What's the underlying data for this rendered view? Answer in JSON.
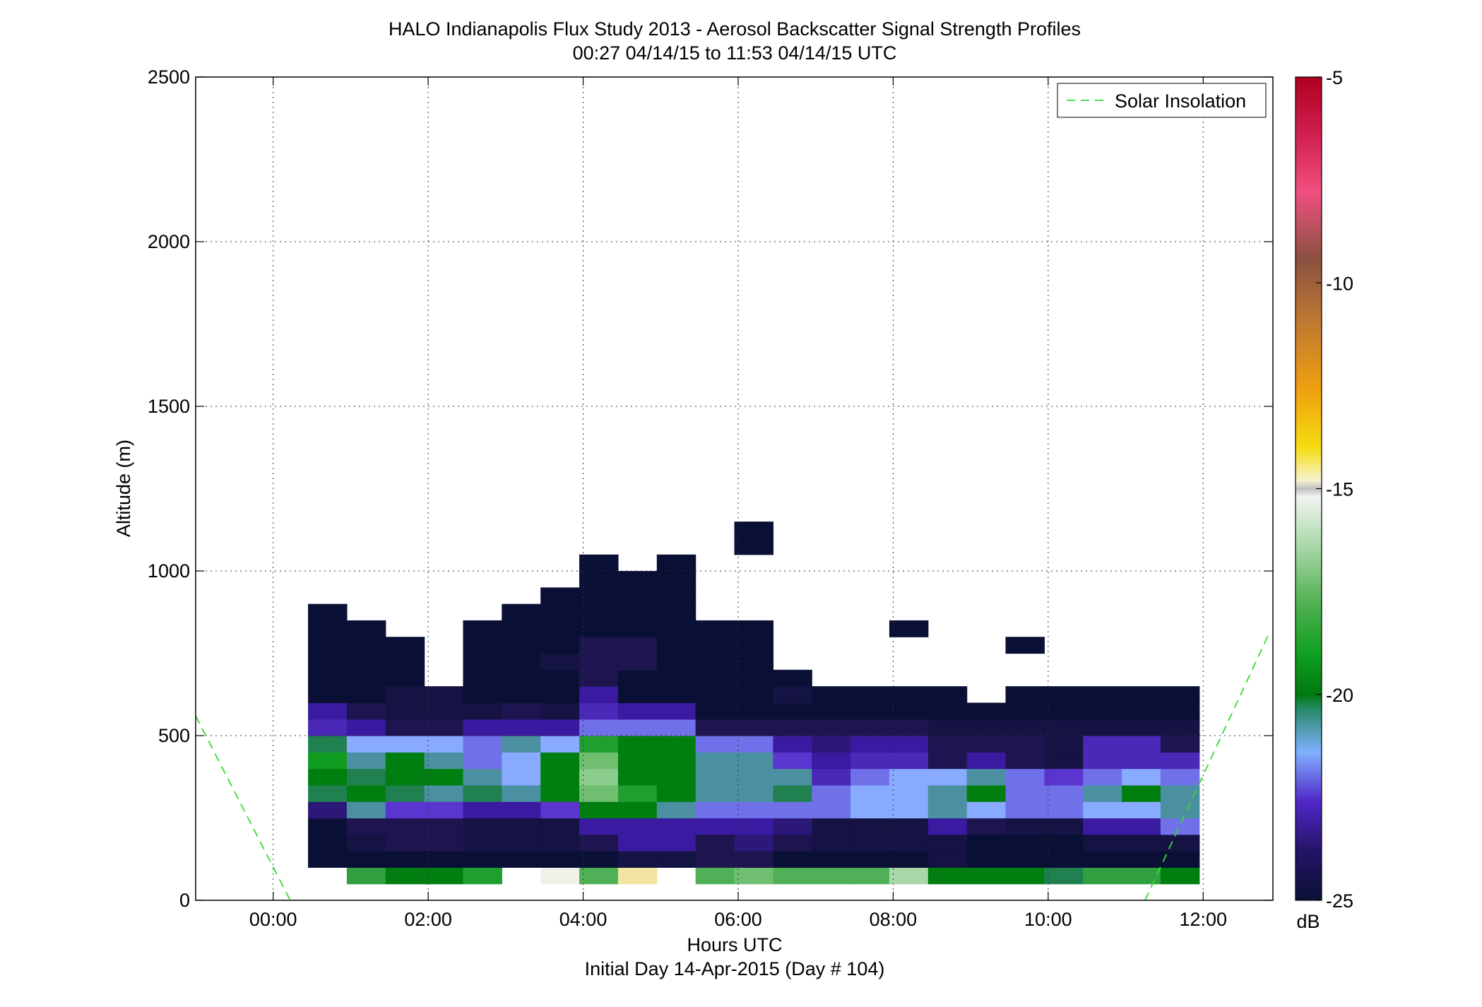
{
  "chart_data": {
    "type": "heatmap",
    "title_line1": "HALO Indianapolis Flux Study 2013 - Aerosol Backscatter Signal Strength Profiles",
    "title_line2": "00:27 04/14/15 to 11:53 04/14/15  UTC",
    "xlabel": "Hours UTC",
    "xlabel_sub": "Initial Day 14-Apr-2015 (Day # 104)",
    "ylabel": "Altitude (m)",
    "xlim": [
      -1.0,
      12.9
    ],
    "ylim": [
      0,
      2500
    ],
    "x_ticks": [
      0,
      2,
      4,
      6,
      8,
      10,
      12
    ],
    "x_tick_labels": [
      "00:00",
      "02:00",
      "04:00",
      "06:00",
      "08:00",
      "10:00",
      "12:00"
    ],
    "y_ticks": [
      0,
      500,
      1000,
      1500,
      2000,
      2500
    ],
    "y_tick_labels": [
      "0",
      "500",
      "1000",
      "1500",
      "2000",
      "2500"
    ],
    "grid": true,
    "legend": {
      "placement": "top-right",
      "entries": [
        {
          "label": "Solar Insolation",
          "color": "#33dd33",
          "style": "dashed"
        }
      ]
    },
    "colorbar": {
      "unit": "dB",
      "range": [
        -25,
        -5
      ],
      "tick_values": [
        -5,
        -10,
        -15,
        -20,
        -25
      ],
      "tick_labels": [
        "-5",
        "-10",
        "-15",
        "-20",
        "-25"
      ]
    },
    "x_start": 0.45,
    "x_step": 0.5,
    "y_start": 50,
    "y_step": 50,
    "columns": [
      {
        "values": [
          null,
          -25,
          -25,
          -25,
          -23.5,
          -20,
          -19.5,
          -19,
          -20,
          -22.5,
          -23,
          -25,
          -25,
          -25,
          -25,
          -25,
          -25
        ]
      },
      {
        "values": [
          -18,
          -25,
          -24.5,
          -24,
          -20.5,
          -19.5,
          -20,
          -20.5,
          -21,
          -23,
          -24,
          -25,
          -25,
          -25,
          -25,
          -25
        ]
      },
      {
        "values": [
          -19.5,
          -25,
          -24,
          -24,
          -22,
          -20,
          -19.5,
          -19.5,
          -21,
          -24,
          -24.5,
          -24.5,
          -25,
          -25,
          -25
        ]
      },
      {
        "values": [
          -19.5,
          -25,
          -24,
          -24,
          -22,
          -20.5,
          -19.5,
          -20.5,
          -21,
          -24,
          -24.5,
          -24.5
        ]
      },
      {
        "values": [
          -18.5,
          -25,
          -24.5,
          -24.5,
          -23,
          -20,
          -20.5,
          -21.5,
          -21.5,
          -23,
          -24.5,
          -25,
          -25,
          -25,
          -25,
          -25
        ]
      },
      {
        "values": [
          null,
          -25,
          -24.5,
          -24.5,
          -23,
          -20.5,
          -21,
          -21,
          -20.5,
          -23,
          -24,
          -25,
          -25,
          -25,
          -25,
          -25,
          -25
        ]
      },
      {
        "values": [
          -15,
          -25,
          -24.5,
          -24.5,
          -22,
          -19.5,
          -19.5,
          -19.5,
          -21,
          -23,
          -24.5,
          -25,
          -25,
          -24.5,
          -25,
          -25,
          -25,
          -25
        ]
      },
      {
        "values": [
          -17.5,
          -25,
          -24,
          -23,
          -19.5,
          -17,
          -16.5,
          -17,
          -18.5,
          -21.5,
          -22.5,
          -23,
          -24,
          -24,
          -24,
          -25,
          -25,
          -25,
          -25,
          -25
        ]
      },
      {
        "values": [
          -14,
          -24.5,
          -23,
          -23,
          -19.5,
          -18.5,
          -19.5,
          -19.5,
          -19.5,
          -21.5,
          -23,
          -25,
          -25,
          -24,
          -24,
          -25,
          -25,
          -25,
          -25
        ]
      },
      {
        "values": [
          null,
          -24.5,
          -23,
          -23,
          -20.5,
          -19.5,
          -19.5,
          -19.5,
          -19.5,
          -21.5,
          -23,
          -25,
          -25,
          -25,
          -25,
          -25,
          -25,
          -25,
          -25,
          -25
        ]
      },
      {
        "values": [
          -17.5,
          -24,
          -24,
          -23,
          -21.5,
          -20.5,
          -20.5,
          -20.5,
          -21.5,
          -24,
          -25,
          -25,
          -25,
          -25,
          -25,
          -25
        ]
      },
      {
        "values": [
          -17,
          -24,
          -23.5,
          -23,
          -21.5,
          -20.5,
          -20.5,
          -20.5,
          -21.5,
          -24,
          -25,
          -25,
          -25,
          -25,
          -25,
          -25,
          null,
          null,
          null,
          null,
          -25,
          -25
        ]
      },
      {
        "values": [
          -17.5,
          -25,
          -24,
          -23.5,
          -21.5,
          -20,
          -20.5,
          -22,
          -23,
          -24,
          -25,
          -24.5,
          -25
        ]
      },
      {
        "values": [
          -17.5,
          -25,
          -24.5,
          -24.5,
          -21.5,
          -21.5,
          -22.5,
          -23,
          -23.5,
          -24,
          -25,
          -25
        ]
      },
      {
        "values": [
          -17.5,
          -25,
          -24.5,
          -24.5,
          -21,
          -21,
          -21.5,
          -22.5,
          -23,
          -24,
          -25,
          -25
        ]
      },
      {
        "values": [
          -16,
          -25,
          -24.5,
          -24.5,
          -21,
          -21,
          -21,
          -22.5,
          -23,
          -24,
          -25,
          -25,
          null,
          null,
          null,
          -25
        ]
      },
      {
        "values": [
          -19.5,
          -24.5,
          -24.5,
          -23,
          -20.5,
          -20.5,
          -21,
          -24,
          -24,
          -24.5,
          -25,
          -25
        ]
      },
      {
        "values": [
          -19.5,
          -25,
          -25,
          -24,
          -21,
          -19.5,
          -20.5,
          -23,
          -24,
          -24.5,
          -25
        ]
      },
      {
        "values": [
          -19.5,
          -25,
          -25,
          -24.5,
          -21.5,
          -21.5,
          -21.5,
          -24,
          -24,
          -24.5,
          -25,
          -25,
          null,
          null,
          -25
        ]
      },
      {
        "values": [
          -20,
          -25,
          -25,
          -24.5,
          -21.5,
          -21.5,
          -22,
          -24.5,
          -24.5,
          -24.5,
          -25,
          -25
        ]
      },
      {
        "values": [
          -18,
          -25,
          -24.5,
          -23,
          -21,
          -20.5,
          -21.5,
          -22.5,
          -22.5,
          -24.5,
          -25,
          -25
        ]
      },
      {
        "values": [
          -18,
          -25,
          -24.5,
          -23,
          -21,
          -19.5,
          -21,
          -22.5,
          -22.5,
          -24.5,
          -25,
          -25
        ]
      },
      {
        "values": [
          -19.5,
          -25,
          -24.5,
          -21.5,
          -20.5,
          -20.5,
          -21.5,
          -22.5,
          -24,
          -24.5,
          -25,
          -25
        ]
      }
    ],
    "solar_insolation": [
      {
        "x": [
          -1.0,
          0.22
        ],
        "y": [
          560,
          0
        ]
      },
      {
        "x": [
          11.25,
          12.85
        ],
        "y": [
          0,
          810
        ]
      }
    ]
  }
}
